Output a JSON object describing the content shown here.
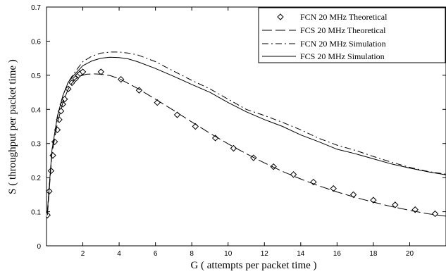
{
  "chart_data": {
    "type": "line",
    "xlabel": "G   ( attempts per packet time )",
    "ylabel": "S  ( throughput per packet time )",
    "xlim": [
      0,
      22
    ],
    "ylim": [
      0,
      0.7
    ],
    "xticks": [
      "2",
      "4",
      "6",
      "8",
      "10",
      "12",
      "14",
      "16",
      "18",
      "20"
    ],
    "xtick_values": [
      2,
      4,
      6,
      8,
      10,
      12,
      14,
      16,
      18,
      20
    ],
    "yticks": [
      "0",
      "0.1",
      "0.2",
      "0.3",
      "0.4",
      "0.5",
      "0.6",
      "0.7"
    ],
    "ytick_values": [
      0,
      0.1,
      0.2,
      0.3,
      0.4,
      0.5,
      0.6,
      0.7
    ],
    "legend_position": "top-right",
    "grid": false,
    "series": [
      {
        "name": "FCN 20 MHz Theoretical",
        "style": "diamond-markers",
        "color": "#000000",
        "x": [
          0.05,
          0.15,
          0.25,
          0.35,
          0.45,
          0.6,
          0.7,
          0.8,
          0.9,
          1.0,
          1.2,
          1.4,
          1.6,
          1.75,
          1.85,
          2.0,
          3.0,
          4.1,
          5.1,
          6.1,
          7.2,
          8.2,
          9.3,
          10.3,
          11.4,
          12.5,
          13.6,
          14.7,
          15.8,
          16.9,
          18.0,
          19.2,
          20.3,
          21.4
        ],
        "y": [
          0.09,
          0.16,
          0.22,
          0.265,
          0.305,
          0.34,
          0.37,
          0.395,
          0.415,
          0.43,
          0.46,
          0.478,
          0.49,
          0.5,
          0.505,
          0.51,
          0.51,
          0.488,
          0.456,
          0.42,
          0.384,
          0.35,
          0.316,
          0.286,
          0.258,
          0.232,
          0.209,
          0.187,
          0.168,
          0.15,
          0.134,
          0.12,
          0.106,
          0.094
        ]
      },
      {
        "name": "FCS 20 MHz Theoretical",
        "style": "long-dash",
        "color": "#000000",
        "x": [
          0.05,
          0.3,
          0.6,
          0.9,
          1.2,
          1.5,
          1.8,
          2.2,
          2.6,
          3.0,
          3.5,
          4.0,
          5.0,
          6.0,
          7.0,
          8.0,
          9.0,
          10.0,
          11.0,
          12.0,
          13.0,
          14.0,
          15.0,
          16.0,
          17.0,
          18.0,
          19.0,
          20.0,
          21.0,
          22.0
        ],
        "y": [
          0.09,
          0.27,
          0.36,
          0.42,
          0.46,
          0.485,
          0.497,
          0.503,
          0.504,
          0.503,
          0.499,
          0.49,
          0.462,
          0.43,
          0.397,
          0.363,
          0.33,
          0.299,
          0.27,
          0.243,
          0.218,
          0.196,
          0.176,
          0.158,
          0.142,
          0.128,
          0.115,
          0.104,
          0.094,
          0.087
        ]
      },
      {
        "name": "FCN 20 MHz Simulation",
        "style": "dash-dot",
        "color": "#000000",
        "x": [
          0.05,
          0.3,
          0.6,
          0.9,
          1.2,
          1.5,
          2.0,
          2.5,
          3.0,
          3.5,
          4.0,
          4.5,
          5.0,
          6.0,
          7.0,
          8.0,
          9.0,
          10.0,
          11.0,
          12.0,
          13.0,
          14.0,
          15.0,
          16.0,
          17.0,
          18.0,
          19.0,
          20.0,
          21.0,
          22.0
        ],
        "y": [
          0.1,
          0.28,
          0.38,
          0.44,
          0.48,
          0.505,
          0.54,
          0.556,
          0.565,
          0.568,
          0.568,
          0.565,
          0.56,
          0.54,
          0.512,
          0.485,
          0.46,
          0.43,
          0.4,
          0.382,
          0.362,
          0.34,
          0.315,
          0.295,
          0.28,
          0.262,
          0.245,
          0.23,
          0.218,
          0.21
        ]
      },
      {
        "name": "FCS 20 MHz Simulation",
        "style": "solid",
        "color": "#000000",
        "x": [
          0.05,
          0.3,
          0.6,
          0.9,
          1.2,
          1.5,
          2.0,
          2.5,
          3.0,
          3.5,
          4.0,
          4.5,
          5.0,
          6.0,
          7.0,
          8.0,
          9.0,
          10.0,
          11.0,
          12.0,
          13.0,
          14.0,
          15.0,
          16.0,
          17.0,
          18.0,
          19.0,
          20.0,
          21.0,
          22.0
        ],
        "y": [
          0.1,
          0.28,
          0.38,
          0.44,
          0.48,
          0.5,
          0.528,
          0.542,
          0.55,
          0.553,
          0.552,
          0.548,
          0.54,
          0.52,
          0.497,
          0.473,
          0.45,
          0.42,
          0.393,
          0.37,
          0.35,
          0.325,
          0.305,
          0.283,
          0.27,
          0.255,
          0.24,
          0.228,
          0.217,
          0.208
        ]
      }
    ]
  }
}
